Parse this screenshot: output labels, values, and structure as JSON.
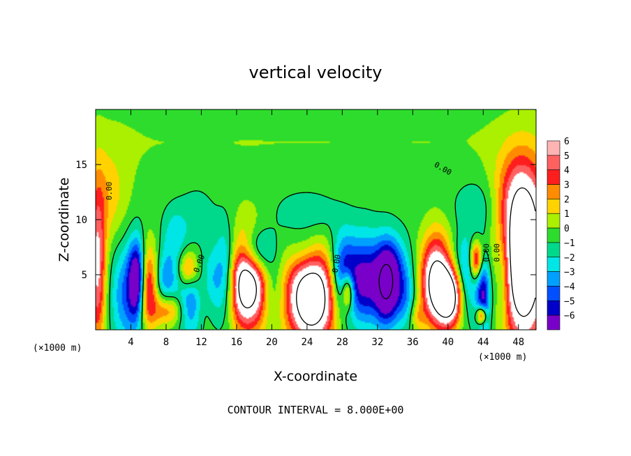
{
  "chart_data": {
    "type": "heatmap",
    "title": "vertical velocity",
    "xlabel": "X-coordinate",
    "ylabel": "Z-coordinate",
    "x_unit_left": "(×1000 m)",
    "x_unit_right": "(×1000 m)",
    "footer": "CONTOUR INTERVAL = 8.000E+00",
    "xlim": [
      0,
      50
    ],
    "ylim": [
      0,
      20
    ],
    "xticks": [
      4,
      8,
      12,
      16,
      20,
      24,
      28,
      32,
      36,
      40,
      44,
      48
    ],
    "xtick_labels": [
      "4",
      "8",
      "12",
      "16",
      "20",
      "24",
      "28",
      "32",
      "36",
      "40",
      "44",
      "48"
    ],
    "yticks": [
      5,
      10,
      15
    ],
    "ytick_labels": [
      "5",
      "10",
      "15"
    ],
    "colorbar": {
      "min": -6,
      "max": 6,
      "levels": [
        6,
        5,
        4,
        3,
        2,
        1,
        0,
        -1,
        -2,
        -3,
        -4,
        -5,
        -6
      ],
      "labels": [
        "6",
        "5",
        "4",
        "3",
        "2",
        "1",
        "0",
        "−1",
        "−2",
        "−3",
        "−4",
        "−5",
        "−6"
      ],
      "colors": [
        "#ffb4b4",
        "#ff6060",
        "#ff1e1e",
        "#ff8c00",
        "#ffd200",
        "#aaf000",
        "#2ddc2d",
        "#00d88c",
        "#00e6e6",
        "#00a0ff",
        "#0050ff",
        "#0000c8",
        "#7800c8"
      ]
    },
    "contour_labels": [
      "0.00",
      "0.00",
      "0.00",
      "0.00",
      "0.00",
      "0.00"
    ],
    "features": [
      {
        "x": 4.8,
        "z": 4.5,
        "value": -10,
        "sx": 0.7,
        "sz": 2.5
      },
      {
        "x": 5.6,
        "z": 4.0,
        "value": 9,
        "sx": 1.0,
        "sz": 2.6
      },
      {
        "x": 3.8,
        "z": 3.2,
        "value": -4,
        "sx": 1.4,
        "sz": 3.2
      },
      {
        "x": 0.2,
        "z": 5.5,
        "value": 6,
        "sx": 0.7,
        "sz": 5.0
      },
      {
        "x": 1.5,
        "z": 12.0,
        "value": 2,
        "sx": 1.6,
        "sz": 3.0
      },
      {
        "x": 8.2,
        "z": 1.8,
        "value": 3.5,
        "sx": 1.2,
        "sz": 1.0
      },
      {
        "x": 7.8,
        "z": 4.6,
        "value": -3.5,
        "sx": 1.1,
        "sz": 1.8
      },
      {
        "x": 10.5,
        "z": 5.5,
        "value": 4,
        "sx": 0.8,
        "sz": 1.2
      },
      {
        "x": 10.8,
        "z": 2.5,
        "value": -3.5,
        "sx": 1.0,
        "sz": 2.2
      },
      {
        "x": 9.0,
        "z": 8.5,
        "value": -2,
        "sx": 1.0,
        "sz": 1.8
      },
      {
        "x": 12.5,
        "z": 3.0,
        "value": 2,
        "sx": 0.8,
        "sz": 2.0
      },
      {
        "x": 13.0,
        "z": 4.0,
        "value": -3,
        "sx": 0.8,
        "sz": 2.2
      },
      {
        "x": 14.8,
        "z": 5.0,
        "value": -5,
        "sx": 0.9,
        "sz": 3.0
      },
      {
        "x": 17.2,
        "z": 4.5,
        "value": 11,
        "sx": 1.7,
        "sz": 3.0
      },
      {
        "x": 18.2,
        "z": 7.0,
        "value": -6,
        "sx": 1.4,
        "sz": 1.6
      },
      {
        "x": 20.0,
        "z": 3.5,
        "value": -2.5,
        "sx": 1.0,
        "sz": 2.0
      },
      {
        "x": 24.5,
        "z": 3.0,
        "value": 11,
        "sx": 2.0,
        "sz": 3.0
      },
      {
        "x": 23.8,
        "z": 6.8,
        "value": -2,
        "sx": 1.3,
        "sz": 1.5
      },
      {
        "x": 24.0,
        "z": 10.5,
        "value": -1.5,
        "sx": 2.5,
        "sz": 1.5
      },
      {
        "x": 28.6,
        "z": 3.5,
        "value": 6,
        "sx": 0.5,
        "sz": 1.2
      },
      {
        "x": 28.0,
        "z": 5.0,
        "value": -5,
        "sx": 1.0,
        "sz": 2.5
      },
      {
        "x": 30.5,
        "z": 4.5,
        "value": -6,
        "sx": 1.5,
        "sz": 2.8
      },
      {
        "x": 33.0,
        "z": 4.0,
        "value": -7,
        "sx": 0.9,
        "sz": 2.5
      },
      {
        "x": 35.0,
        "z": 3.0,
        "value": -3,
        "sx": 1.0,
        "sz": 2.0
      },
      {
        "x": 34.0,
        "z": 6.0,
        "value": -2.5,
        "sx": 1.2,
        "sz": 2.0
      },
      {
        "x": 36.5,
        "z": 1.2,
        "value": 2,
        "sx": 0.6,
        "sz": 1.0
      },
      {
        "x": 38.8,
        "z": 4.5,
        "value": 10,
        "sx": 1.3,
        "sz": 2.8
      },
      {
        "x": 40.3,
        "z": 2.8,
        "value": 7,
        "sx": 1.0,
        "sz": 1.8
      },
      {
        "x": 40.2,
        "z": 6.5,
        "value": -1.5,
        "sx": 1.5,
        "sz": 1.5
      },
      {
        "x": 42.0,
        "z": 4.5,
        "value": -3,
        "sx": 0.8,
        "sz": 2.5
      },
      {
        "x": 43.2,
        "z": 6.3,
        "value": 6,
        "sx": 0.5,
        "sz": 1.2
      },
      {
        "x": 44.0,
        "z": 3.0,
        "value": -6,
        "sx": 0.6,
        "sz": 2.5
      },
      {
        "x": 43.8,
        "z": 1.3,
        "value": 7,
        "sx": 0.4,
        "sz": 0.6
      },
      {
        "x": 46.2,
        "z": 5.0,
        "value": -3,
        "sx": 0.7,
        "sz": 3.0
      },
      {
        "x": 48.6,
        "z": 6.0,
        "value": 12,
        "sx": 1.8,
        "sz": 5.0
      },
      {
        "x": 48.0,
        "z": 12.0,
        "value": 3,
        "sx": 2.0,
        "sz": 3.0
      },
      {
        "x": 43.5,
        "z": 11.0,
        "value": -1.5,
        "sx": 2.0,
        "sz": 2.0
      },
      {
        "x": 11.5,
        "z": 10.5,
        "value": -1,
        "sx": 1.5,
        "sz": 2.0
      }
    ]
  }
}
